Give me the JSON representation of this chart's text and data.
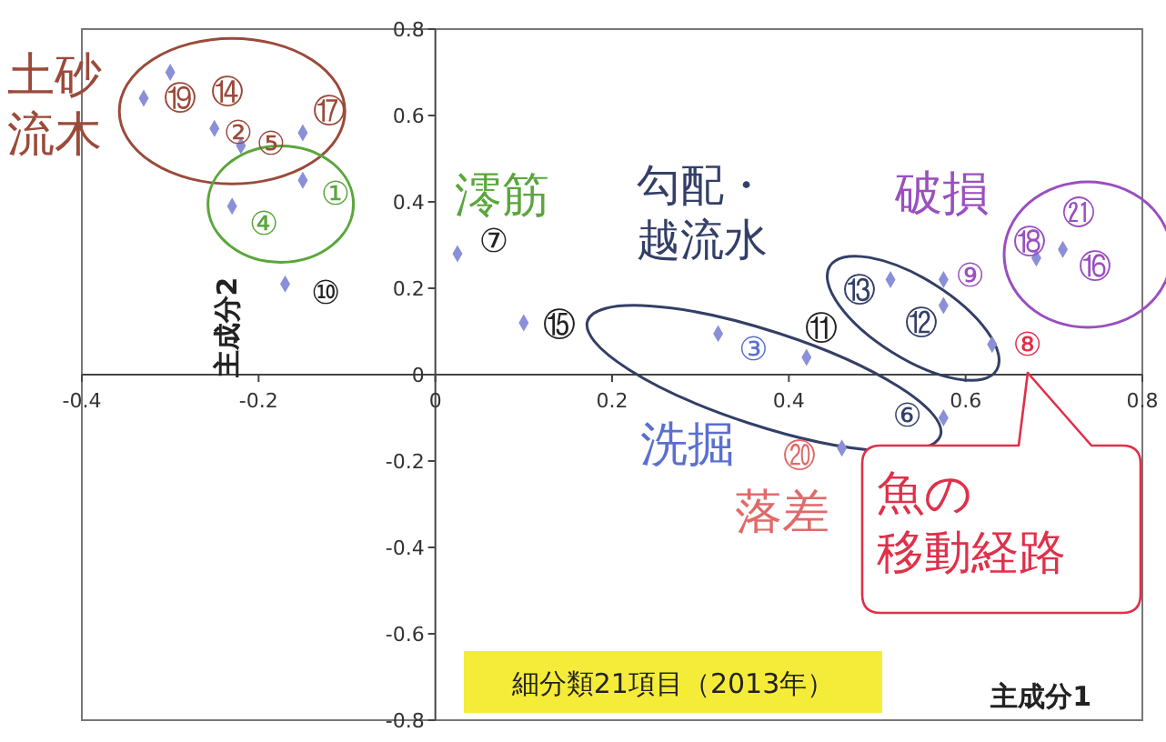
{
  "chart_data": {
    "type": "scatter",
    "xlabel": "主成分1",
    "ylabel": "主成分2",
    "marker": "diamond",
    "xlim": [
      -0.4,
      0.8
    ],
    "xticks": [
      -0.4,
      -0.2,
      0,
      0.2,
      0.4,
      0.6,
      0.8
    ],
    "ylim": [
      -0.8,
      0.8
    ],
    "yticks": [
      -0.8,
      -0.6,
      -0.4,
      -0.2,
      0,
      0.2,
      0.4,
      0.6,
      0.8
    ],
    "x": [
      -0.33,
      -0.3,
      -0.25,
      -0.22,
      -0.15,
      -0.15,
      -0.23,
      -0.17,
      0.025,
      0.1,
      0.32,
      0.42,
      0.515,
      0.575,
      0.575,
      0.63,
      0.575,
      0.46,
      0.68,
      0.71
    ],
    "series": [
      {
        "color": "#8a8fd8",
        "values": [
          0.64,
          0.7,
          0.57,
          0.53,
          0.56,
          0.45,
          0.39,
          0.21,
          0.28,
          0.12,
          0.095,
          0.04,
          0.22,
          0.22,
          0.16,
          0.07,
          -0.1,
          -0.17,
          0.27,
          0.29
        ]
      }
    ],
    "annotations": [
      "⑲",
      "⑭",
      "⑰",
      "②",
      "⑤",
      "①",
      "④",
      "⑩",
      "⑦",
      "⑮",
      "⑬",
      "⑫",
      "⑨",
      "⑪",
      "③",
      "⑥",
      "⑳",
      "⑧",
      "⑱",
      "㉑",
      "⑯",
      "土砂流木",
      "澪筋",
      "勾配・越流水",
      "破損",
      "洗掘",
      "落差",
      "魚の移動経路",
      "細分類21項目（2013年）"
    ]
  }
}
